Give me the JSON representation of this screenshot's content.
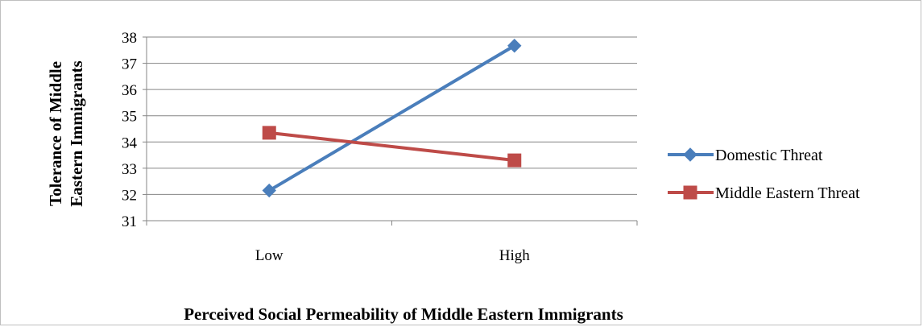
{
  "chart_data": {
    "type": "line",
    "xlabel": "Perceived Social Permeability of Middle Eastern Immigrants",
    "ylabel": "Tolerance of Middle Eastern Immigrants",
    "ylim": [
      31,
      38
    ],
    "yticks": [
      31,
      32,
      33,
      34,
      35,
      36,
      37,
      38
    ],
    "categories": [
      "Low",
      "High"
    ],
    "grid": "horizontal",
    "legend": "right",
    "series": [
      {
        "name": "Domestic Threat",
        "values": [
          32.15,
          37.67
        ],
        "color": "#4a7ebb",
        "marker": "diamond"
      },
      {
        "name": "Middle Eastern Threat",
        "values": [
          34.35,
          33.3
        ],
        "color": "#be4b48",
        "marker": "square"
      }
    ]
  }
}
